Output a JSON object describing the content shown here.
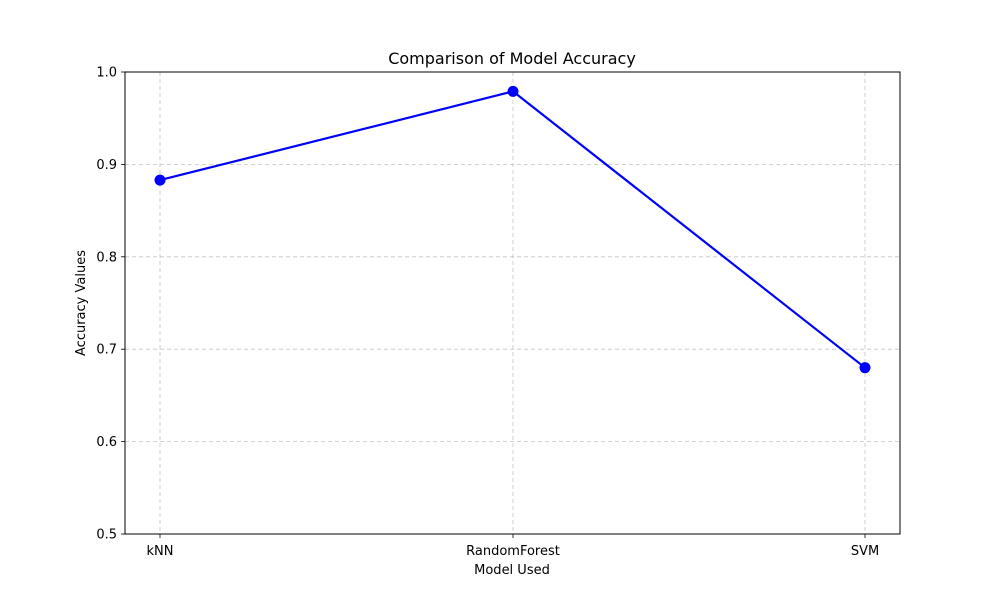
{
  "chart_data": {
    "type": "line",
    "title": "Comparison of Model Accuracy",
    "xlabel": "Model Used",
    "ylabel": "Accuracy Values",
    "categories": [
      "kNN",
      "RandomForest",
      "SVM"
    ],
    "series": [
      {
        "values": [
          0.883,
          0.979,
          0.68
        ],
        "color": "#0000ff",
        "marker": "circle"
      }
    ],
    "ylim": [
      0.5,
      1.0
    ],
    "yticks": [
      "0.5",
      "0.6",
      "0.7",
      "0.8",
      "0.9",
      "1.0"
    ],
    "grid": true,
    "grid_style": "dashed"
  }
}
